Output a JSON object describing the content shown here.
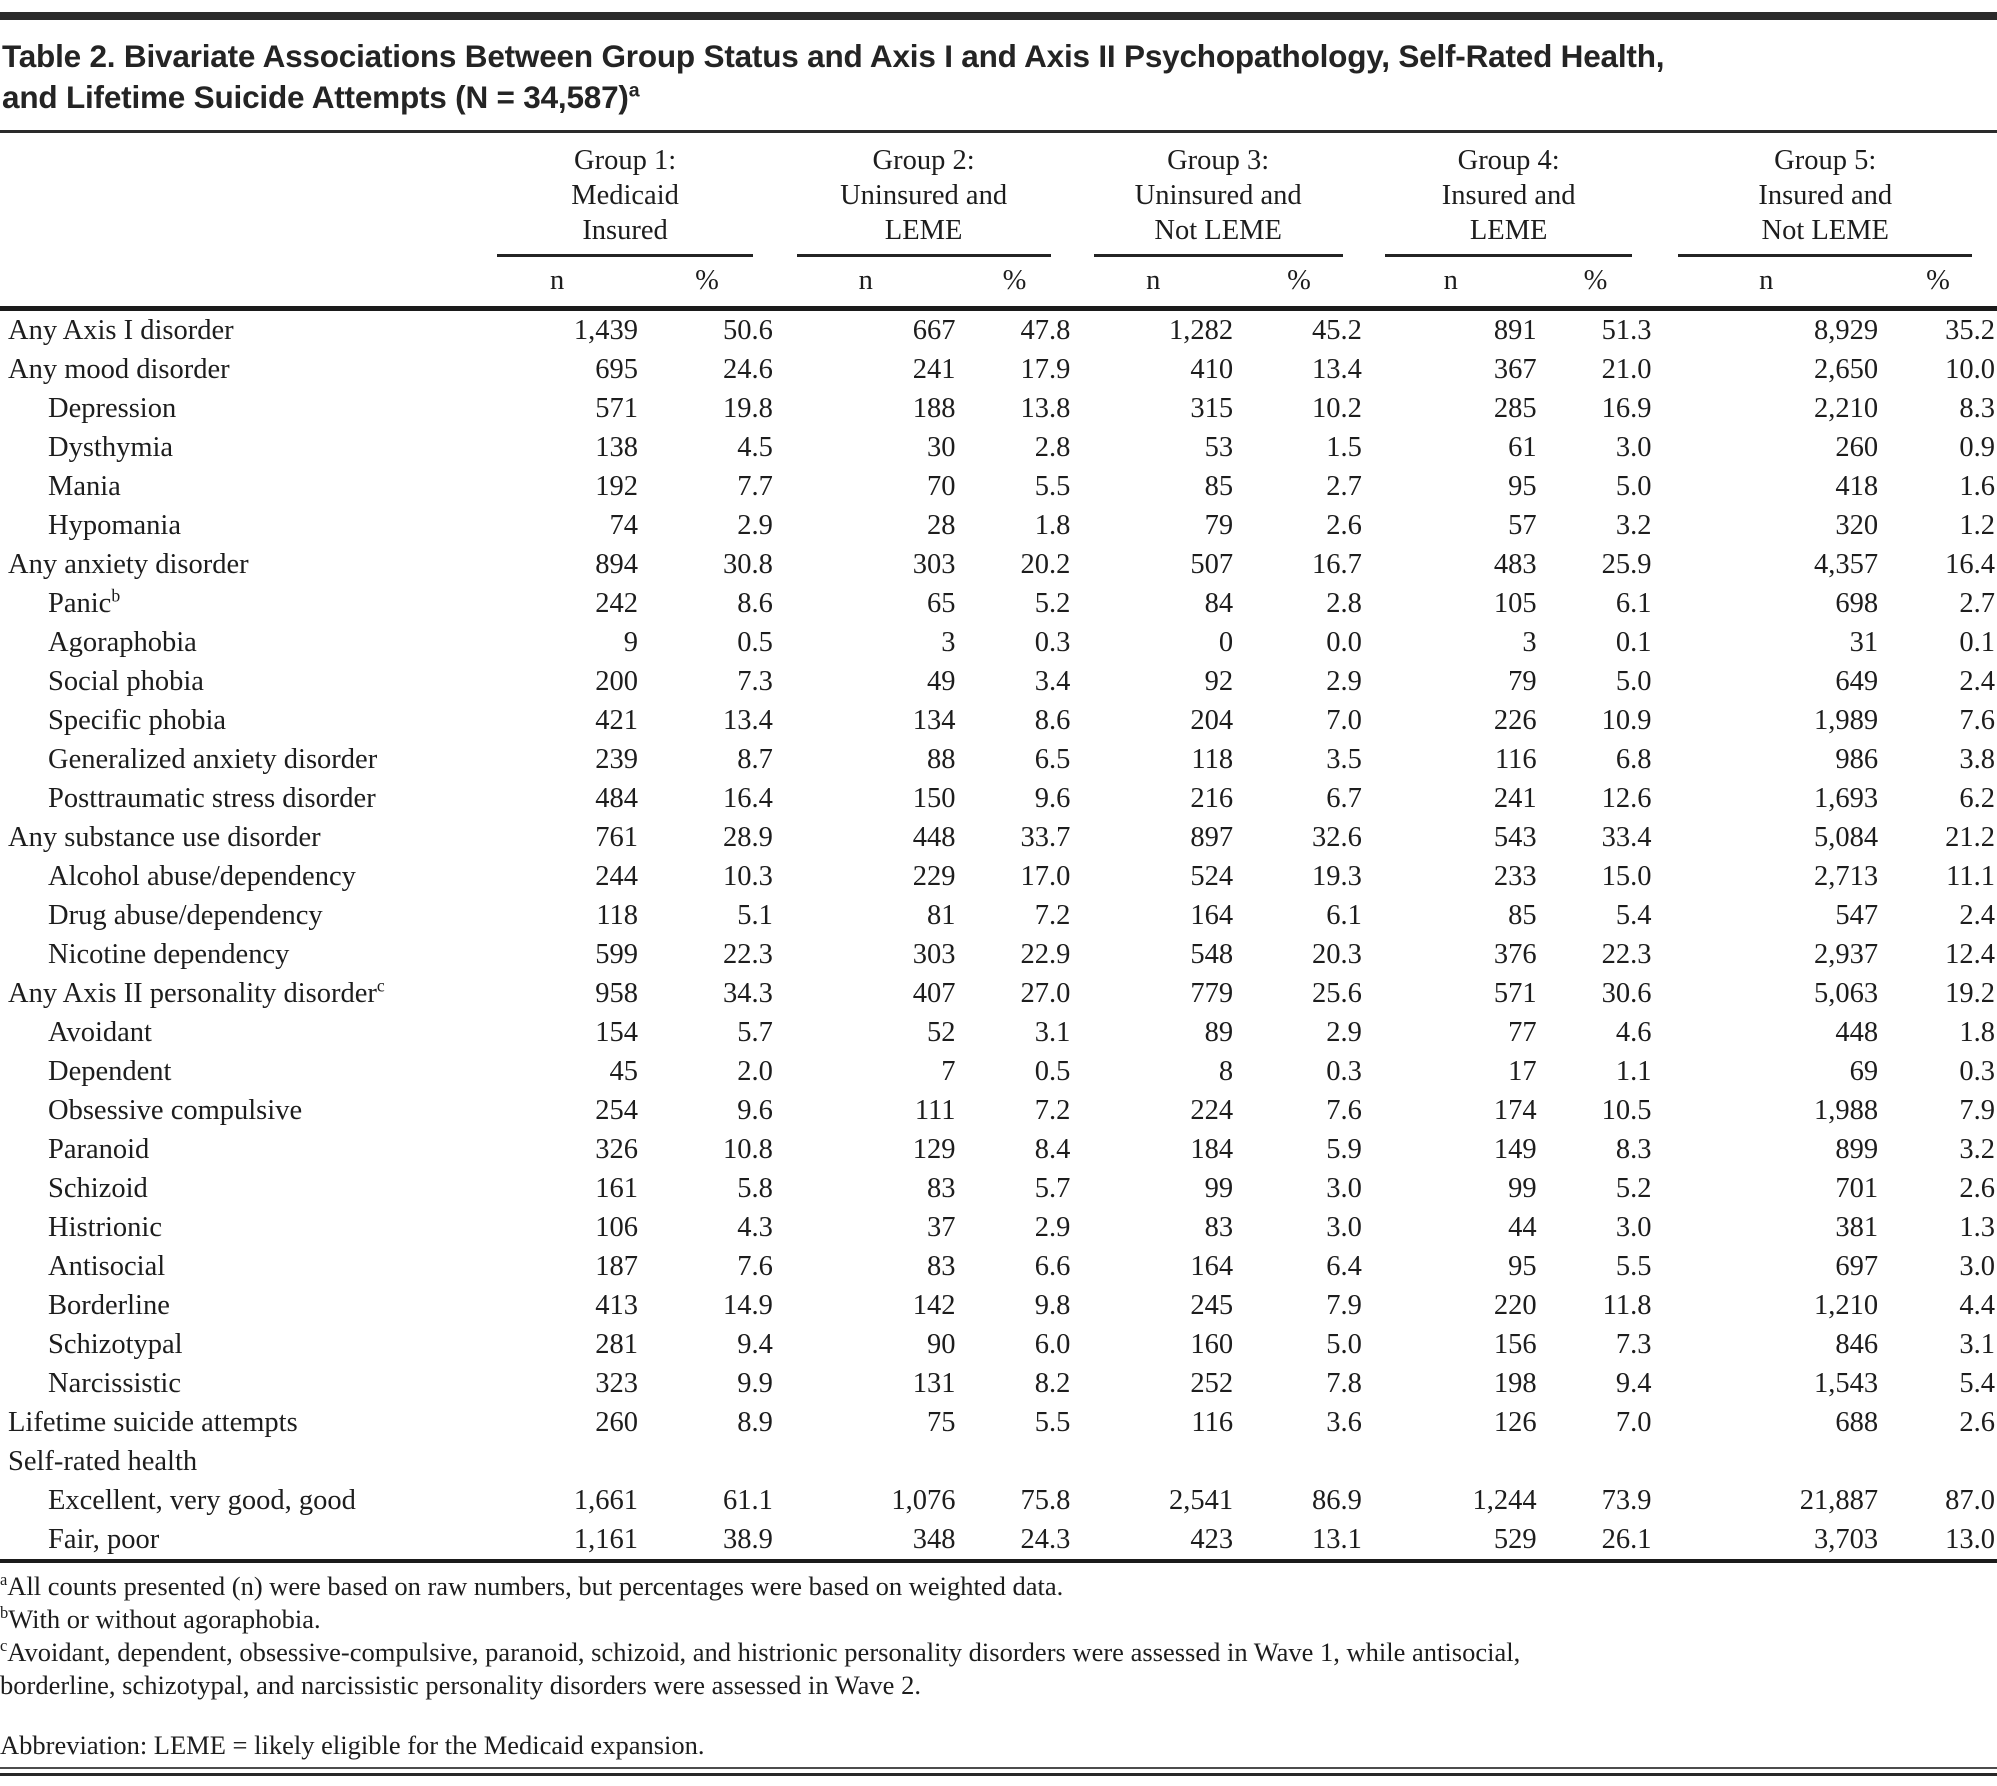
{
  "page": {
    "title_line1": "Table 2. Bivariate Associations Between Group Status and Axis I and Axis II Psychopathology, Self-Rated Health,",
    "title_line2": "and Lifetime Suicide Attempts (N = 34,587)",
    "title_superscript": "a"
  },
  "table": {
    "col_n": "n",
    "col_pct": "%",
    "groups": [
      {
        "line1": "Group 1:",
        "line2": "Medicaid",
        "line3": "Insured"
      },
      {
        "line1": "Group 2:",
        "line2": "Uninsured and",
        "line3": "LEME"
      },
      {
        "line1": "Group 3:",
        "line2": "Uninsured and",
        "line3": "Not LEME"
      },
      {
        "line1": "Group 4:",
        "line2": "Insured and",
        "line3": "LEME"
      },
      {
        "line1": "Group 5:",
        "line2": "Insured and",
        "line3": "Not LEME"
      }
    ],
    "rows": [
      {
        "label": "Any Axis I disorder",
        "indent": 0,
        "sup": "",
        "values": [
          "1,439",
          "50.6",
          "667",
          "47.8",
          "1,282",
          "45.2",
          "891",
          "51.3",
          "8,929",
          "35.2"
        ]
      },
      {
        "label": "Any mood disorder",
        "indent": 0,
        "sup": "",
        "values": [
          "695",
          "24.6",
          "241",
          "17.9",
          "410",
          "13.4",
          "367",
          "21.0",
          "2,650",
          "10.0"
        ]
      },
      {
        "label": "Depression",
        "indent": 1,
        "sup": "",
        "values": [
          "571",
          "19.8",
          "188",
          "13.8",
          "315",
          "10.2",
          "285",
          "16.9",
          "2,210",
          "8.3"
        ]
      },
      {
        "label": "Dysthymia",
        "indent": 1,
        "sup": "",
        "values": [
          "138",
          "4.5",
          "30",
          "2.8",
          "53",
          "1.5",
          "61",
          "3.0",
          "260",
          "0.9"
        ]
      },
      {
        "label": "Mania",
        "indent": 1,
        "sup": "",
        "values": [
          "192",
          "7.7",
          "70",
          "5.5",
          "85",
          "2.7",
          "95",
          "5.0",
          "418",
          "1.6"
        ]
      },
      {
        "label": "Hypomania",
        "indent": 1,
        "sup": "",
        "values": [
          "74",
          "2.9",
          "28",
          "1.8",
          "79",
          "2.6",
          "57",
          "3.2",
          "320",
          "1.2"
        ]
      },
      {
        "label": "Any anxiety disorder",
        "indent": 0,
        "sup": "",
        "values": [
          "894",
          "30.8",
          "303",
          "20.2",
          "507",
          "16.7",
          "483",
          "25.9",
          "4,357",
          "16.4"
        ]
      },
      {
        "label": "Panic",
        "indent": 1,
        "sup": "b",
        "values": [
          "242",
          "8.6",
          "65",
          "5.2",
          "84",
          "2.8",
          "105",
          "6.1",
          "698",
          "2.7"
        ]
      },
      {
        "label": "Agoraphobia",
        "indent": 1,
        "sup": "",
        "values": [
          "9",
          "0.5",
          "3",
          "0.3",
          "0",
          "0.0",
          "3",
          "0.1",
          "31",
          "0.1"
        ]
      },
      {
        "label": "Social phobia",
        "indent": 1,
        "sup": "",
        "values": [
          "200",
          "7.3",
          "49",
          "3.4",
          "92",
          "2.9",
          "79",
          "5.0",
          "649",
          "2.4"
        ]
      },
      {
        "label": "Specific phobia",
        "indent": 1,
        "sup": "",
        "values": [
          "421",
          "13.4",
          "134",
          "8.6",
          "204",
          "7.0",
          "226",
          "10.9",
          "1,989",
          "7.6"
        ]
      },
      {
        "label": "Generalized anxiety disorder",
        "indent": 1,
        "sup": "",
        "values": [
          "239",
          "8.7",
          "88",
          "6.5",
          "118",
          "3.5",
          "116",
          "6.8",
          "986",
          "3.8"
        ]
      },
      {
        "label": "Posttraumatic stress disorder",
        "indent": 1,
        "sup": "",
        "values": [
          "484",
          "16.4",
          "150",
          "9.6",
          "216",
          "6.7",
          "241",
          "12.6",
          "1,693",
          "6.2"
        ]
      },
      {
        "label": "Any substance use disorder",
        "indent": 0,
        "sup": "",
        "values": [
          "761",
          "28.9",
          "448",
          "33.7",
          "897",
          "32.6",
          "543",
          "33.4",
          "5,084",
          "21.2"
        ]
      },
      {
        "label": "Alcohol abuse/dependency",
        "indent": 1,
        "sup": "",
        "values": [
          "244",
          "10.3",
          "229",
          "17.0",
          "524",
          "19.3",
          "233",
          "15.0",
          "2,713",
          "11.1"
        ]
      },
      {
        "label": "Drug abuse/dependency",
        "indent": 1,
        "sup": "",
        "values": [
          "118",
          "5.1",
          "81",
          "7.2",
          "164",
          "6.1",
          "85",
          "5.4",
          "547",
          "2.4"
        ]
      },
      {
        "label": "Nicotine dependency",
        "indent": 1,
        "sup": "",
        "values": [
          "599",
          "22.3",
          "303",
          "22.9",
          "548",
          "20.3",
          "376",
          "22.3",
          "2,937",
          "12.4"
        ]
      },
      {
        "label": "Any Axis II personality disorder",
        "indent": 0,
        "sup": "c",
        "values": [
          "958",
          "34.3",
          "407",
          "27.0",
          "779",
          "25.6",
          "571",
          "30.6",
          "5,063",
          "19.2"
        ]
      },
      {
        "label": "Avoidant",
        "indent": 1,
        "sup": "",
        "values": [
          "154",
          "5.7",
          "52",
          "3.1",
          "89",
          "2.9",
          "77",
          "4.6",
          "448",
          "1.8"
        ]
      },
      {
        "label": "Dependent",
        "indent": 1,
        "sup": "",
        "values": [
          "45",
          "2.0",
          "7",
          "0.5",
          "8",
          "0.3",
          "17",
          "1.1",
          "69",
          "0.3"
        ]
      },
      {
        "label": "Obsessive compulsive",
        "indent": 1,
        "sup": "",
        "values": [
          "254",
          "9.6",
          "111",
          "7.2",
          "224",
          "7.6",
          "174",
          "10.5",
          "1,988",
          "7.9"
        ]
      },
      {
        "label": "Paranoid",
        "indent": 1,
        "sup": "",
        "values": [
          "326",
          "10.8",
          "129",
          "8.4",
          "184",
          "5.9",
          "149",
          "8.3",
          "899",
          "3.2"
        ]
      },
      {
        "label": "Schizoid",
        "indent": 1,
        "sup": "",
        "values": [
          "161",
          "5.8",
          "83",
          "5.7",
          "99",
          "3.0",
          "99",
          "5.2",
          "701",
          "2.6"
        ]
      },
      {
        "label": "Histrionic",
        "indent": 1,
        "sup": "",
        "values": [
          "106",
          "4.3",
          "37",
          "2.9",
          "83",
          "3.0",
          "44",
          "3.0",
          "381",
          "1.3"
        ]
      },
      {
        "label": "Antisocial",
        "indent": 1,
        "sup": "",
        "values": [
          "187",
          "7.6",
          "83",
          "6.6",
          "164",
          "6.4",
          "95",
          "5.5",
          "697",
          "3.0"
        ]
      },
      {
        "label": "Borderline",
        "indent": 1,
        "sup": "",
        "values": [
          "413",
          "14.9",
          "142",
          "9.8",
          "245",
          "7.9",
          "220",
          "11.8",
          "1,210",
          "4.4"
        ]
      },
      {
        "label": "Schizotypal",
        "indent": 1,
        "sup": "",
        "values": [
          "281",
          "9.4",
          "90",
          "6.0",
          "160",
          "5.0",
          "156",
          "7.3",
          "846",
          "3.1"
        ]
      },
      {
        "label": "Narcissistic",
        "indent": 1,
        "sup": "",
        "values": [
          "323",
          "9.9",
          "131",
          "8.2",
          "252",
          "7.8",
          "198",
          "9.4",
          "1,543",
          "5.4"
        ]
      },
      {
        "label": "Lifetime suicide attempts",
        "indent": 0,
        "sup": "",
        "values": [
          "260",
          "8.9",
          "75",
          "5.5",
          "116",
          "3.6",
          "126",
          "7.0",
          "688",
          "2.6"
        ]
      },
      {
        "label": "Self-rated health",
        "indent": 0,
        "sup": "",
        "values": [
          "",
          "",
          "",
          "",
          "",
          "",
          "",
          "",
          "",
          ""
        ]
      },
      {
        "label": "Excellent, very good, good",
        "indent": 1,
        "sup": "",
        "values": [
          "1,661",
          "61.1",
          "1,076",
          "75.8",
          "2,541",
          "86.9",
          "1,244",
          "73.9",
          "21,887",
          "87.0"
        ]
      },
      {
        "label": "Fair, poor",
        "indent": 1,
        "sup": "",
        "values": [
          "1,161",
          "38.9",
          "348",
          "24.3",
          "423",
          "13.1",
          "529",
          "26.1",
          "3,703",
          "13.0"
        ]
      }
    ],
    "footnotes": [
      {
        "marker": "a",
        "lines": [
          "All counts presented (n) were based on raw numbers, but percentages were based on weighted data."
        ]
      },
      {
        "marker": "b",
        "lines": [
          "With or without agoraphobia."
        ]
      },
      {
        "marker": "c",
        "lines": [
          "Avoidant, dependent, obsessive-compulsive, paranoid, schizoid, and histrionic personality disorders were assessed in Wave 1, while antisocial,",
          "borderline, schizotypal, and narcissistic personality disorders were assessed in Wave 2."
        ]
      },
      {
        "marker": "",
        "lines": [
          "Abbreviation: LEME = likely eligible for the Medicaid expansion."
        ]
      }
    ]
  }
}
